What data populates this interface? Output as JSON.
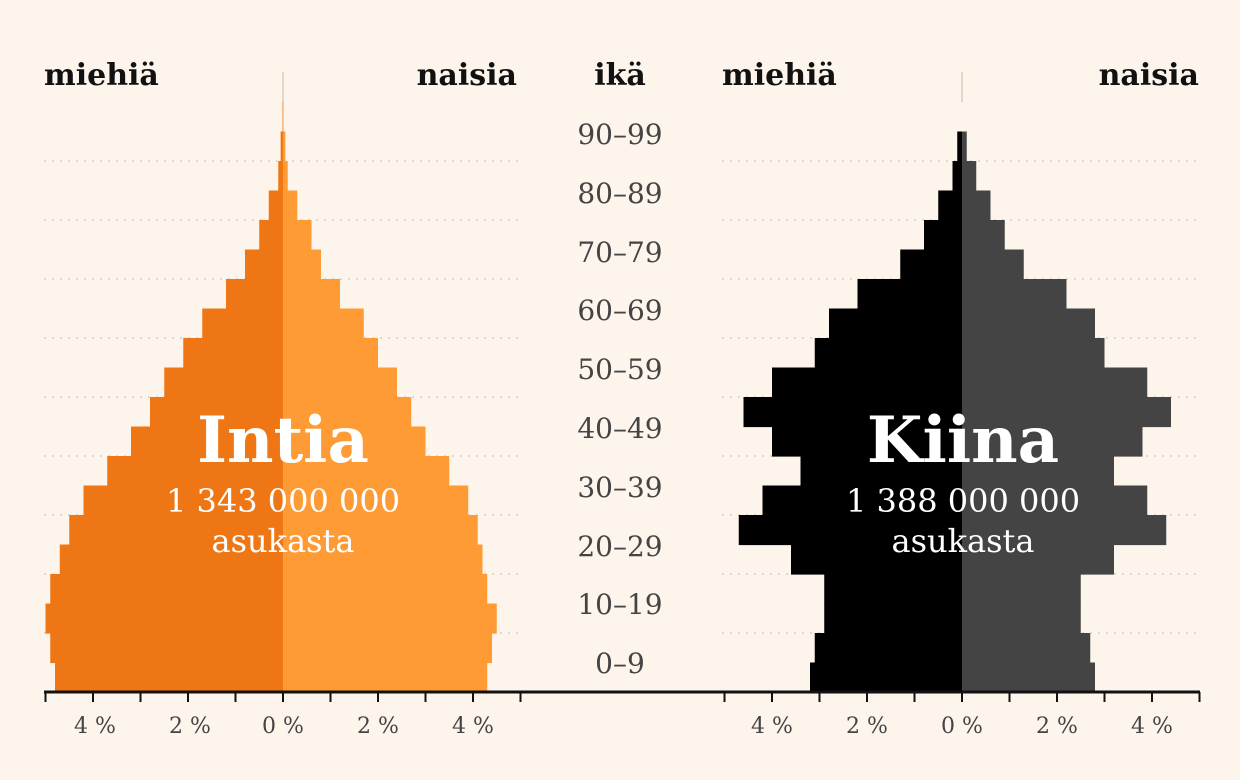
{
  "labels": {
    "men": "miehiä",
    "women": "naisia",
    "age": "ikä"
  },
  "age_labels": [
    "0–9",
    "10–19",
    "20–29",
    "30–39",
    "40–49",
    "50–59",
    "60–69",
    "70–79",
    "80–89",
    "90–99"
  ],
  "chart_data": [
    {
      "type": "bar",
      "country": "Intia",
      "population_text": "1 343 000 000",
      "population_unit": "asukasta",
      "colors": {
        "men": "#ef7614",
        "women": "#fe9b35"
      },
      "xlim": [
        -5,
        5
      ],
      "tick_labels": [
        "4 %",
        "2 %",
        "0 %",
        "2 %",
        "4 %"
      ],
      "age_groups_5yr": [
        "0–4",
        "5–9",
        "10–14",
        "15–19",
        "20–24",
        "25–29",
        "30–34",
        "35–39",
        "40–44",
        "45–49",
        "50–54",
        "55–59",
        "60–64",
        "65–69",
        "70–74",
        "75–79",
        "80–84",
        "85–89",
        "90–94",
        "95–99"
      ],
      "men_percent": [
        4.8,
        4.9,
        5.0,
        4.9,
        4.7,
        4.5,
        4.2,
        3.7,
        3.2,
        2.8,
        2.5,
        2.1,
        1.7,
        1.2,
        0.8,
        0.5,
        0.3,
        0.1,
        0.05,
        0.01
      ],
      "women_percent": [
        4.3,
        4.4,
        4.5,
        4.3,
        4.2,
        4.1,
        3.9,
        3.5,
        3.0,
        2.7,
        2.4,
        2.0,
        1.7,
        1.2,
        0.8,
        0.6,
        0.3,
        0.1,
        0.05,
        0.01
      ]
    },
    {
      "type": "bar",
      "country": "Kiina",
      "population_text": "1 388 000 000",
      "population_unit": "asukasta",
      "colors": {
        "men": "#000000",
        "women": "#444444"
      },
      "xlim": [
        -5,
        5
      ],
      "tick_labels": [
        "4 %",
        "2 %",
        "0 %",
        "2 %",
        "4 %"
      ],
      "age_groups_5yr": [
        "0–4",
        "5–9",
        "10–14",
        "15–19",
        "20–24",
        "25–29",
        "30–34",
        "35–39",
        "40–44",
        "45–49",
        "50–54",
        "55–59",
        "60–64",
        "65–69",
        "70–74",
        "75–79",
        "80–84",
        "85–89",
        "90–94",
        "95–99"
      ],
      "men_percent": [
        3.2,
        3.1,
        2.9,
        2.9,
        3.6,
        4.7,
        4.2,
        3.4,
        4.0,
        4.6,
        4.0,
        3.1,
        2.8,
        2.2,
        1.3,
        0.8,
        0.5,
        0.2,
        0.1,
        0.0
      ],
      "women_percent": [
        2.8,
        2.7,
        2.5,
        2.5,
        3.2,
        4.3,
        3.9,
        3.2,
        3.8,
        4.4,
        3.9,
        3.0,
        2.8,
        2.2,
        1.3,
        0.9,
        0.6,
        0.3,
        0.1,
        0.0
      ]
    }
  ]
}
